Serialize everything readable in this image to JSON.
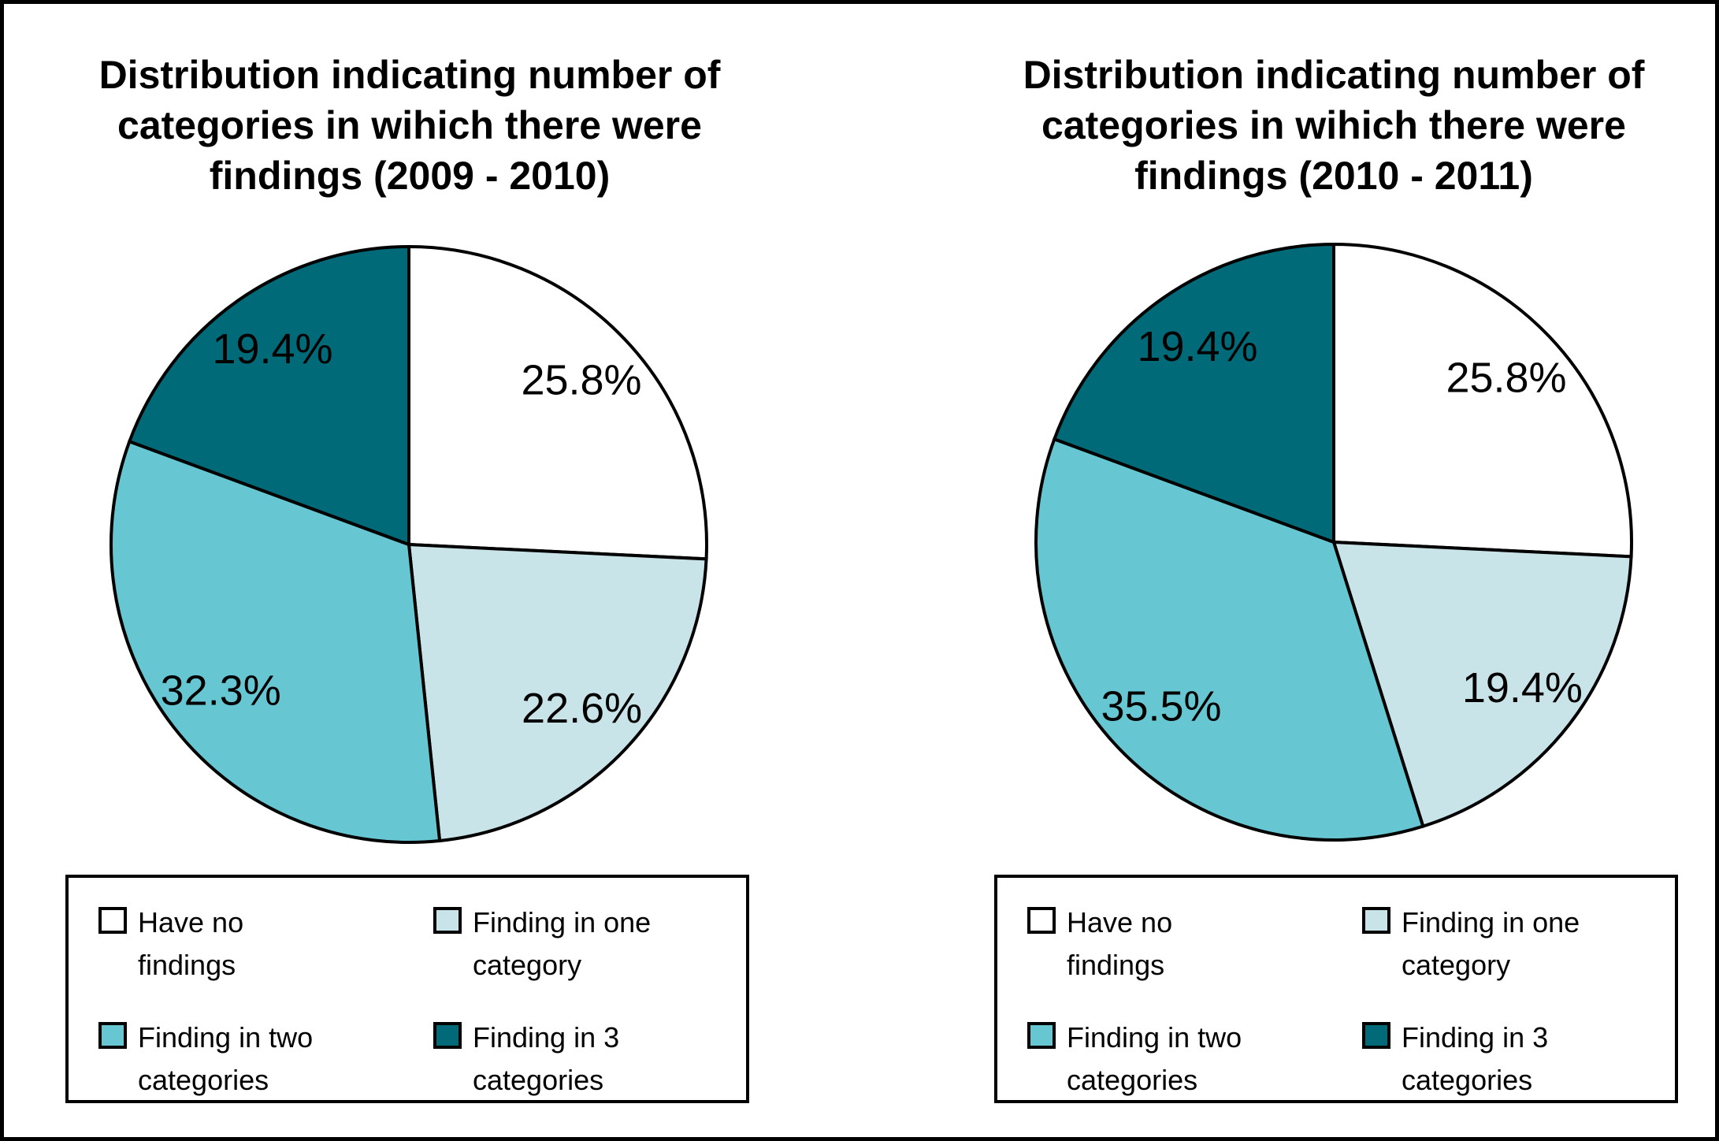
{
  "figure": {
    "background": "#ffffff",
    "frame_color": "#000000"
  },
  "chart_data": [
    {
      "type": "pie",
      "title": "Distribution indicating number of categories in wihich there were findings (2009 - 2010)",
      "title_lines": [
        "Distribution indicating number of",
        "categories in wihich there were",
        "findings (2009 - 2010)"
      ],
      "labels": [
        "Have no findings",
        "Finding in one category",
        "Finding in two categories",
        "Finding in 3 categories"
      ],
      "values": [
        25.8,
        22.6,
        32.3,
        19.4
      ],
      "value_labels": [
        "25.8%",
        "22.6%",
        "32.3%",
        "19.4%"
      ],
      "colors": [
        "#ffffff",
        "#c9e4e9",
        "#66c7d2",
        "#006a78"
      ],
      "start_angle_deg": 0,
      "direction": "clockwise",
      "legend_position": "below"
    },
    {
      "type": "pie",
      "title": "Distribution indicating number of categories in wihich there were findings (2010 - 2011)",
      "title_lines": [
        "Distribution indicating number of",
        "categories in wihich there were",
        "findings (2010 - 2011)"
      ],
      "labels": [
        "Have no findings",
        "Finding in one category",
        "Finding in two categories",
        "Finding in 3 categories"
      ],
      "values": [
        25.8,
        19.4,
        35.5,
        19.4
      ],
      "value_labels": [
        "25.8%",
        "19.4%",
        "35.5%",
        "19.4%"
      ],
      "colors": [
        "#ffffff",
        "#c9e4e9",
        "#66c7d2",
        "#006a78"
      ],
      "start_angle_deg": 0,
      "direction": "clockwise",
      "legend_position": "below"
    }
  ],
  "legend": {
    "items": [
      {
        "label": "Have no findings",
        "label_lines": [
          "Have no",
          "findings"
        ],
        "color": "#ffffff"
      },
      {
        "label": "Finding in one category",
        "label_lines": [
          "Finding in one",
          "category"
        ],
        "color": "#c9e4e9"
      },
      {
        "label": "Finding in two categories",
        "label_lines": [
          "Finding in two",
          "categories"
        ],
        "color": "#66c7d2"
      },
      {
        "label": "Finding in 3 categories",
        "label_lines": [
          "Finding in 3",
          "categories"
        ],
        "color": "#006a78"
      }
    ]
  },
  "style": {
    "slice_outline_color": "#000000",
    "label_text_color": "#000000"
  }
}
